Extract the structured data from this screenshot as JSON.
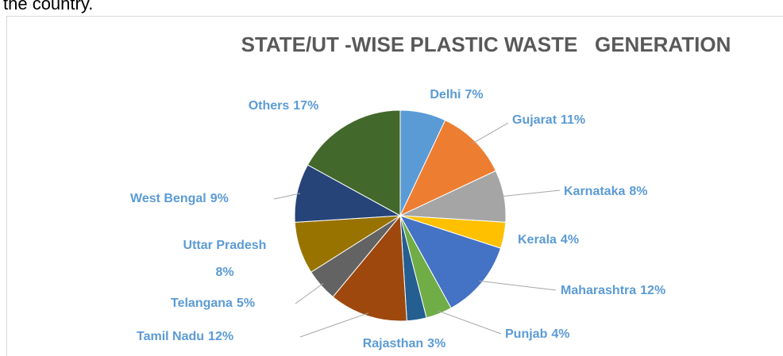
{
  "text_above": "the country.",
  "chart_data": {
    "type": "pie",
    "title": "STATE/UT -WISE PLASTIC WASTE   GENERATION",
    "categories": [
      "Delhi",
      "Gujarat",
      "Karnataka",
      "Kerala",
      "Maharashtra",
      "Punjab",
      "Rajasthan",
      "Tamil Nadu",
      "Telangana",
      "Uttar Pradesh",
      "West Bengal",
      "Others"
    ],
    "values": [
      7,
      11,
      8,
      4,
      12,
      4,
      3,
      12,
      5,
      8,
      9,
      17
    ],
    "value_labels": [
      "7%",
      "11%",
      "8%",
      "4%",
      "12%",
      "4%",
      "3%",
      "12%",
      "5%",
      "8%",
      "9%",
      "17%"
    ],
    "colors": [
      "#5b9bd5",
      "#ed7d31",
      "#a5a5a5",
      "#ffc000",
      "#4472c4",
      "#70ad47",
      "#255e91",
      "#9e480e",
      "#636363",
      "#997300",
      "#264478",
      "#43682b"
    ]
  }
}
